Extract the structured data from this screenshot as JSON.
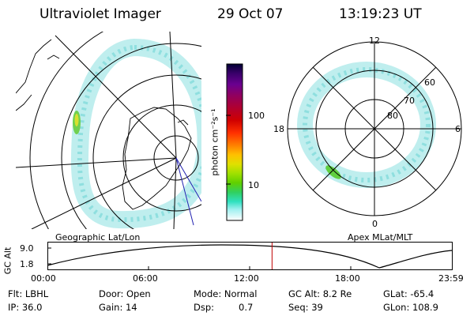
{
  "header": {
    "instrument": "Ultraviolet Imager",
    "date": "29 Oct 07",
    "time": "13:19:23 UT"
  },
  "left_panel": {
    "label": "Geographic Lat/Lon"
  },
  "right_panel": {
    "label": "Apex MLat/MLT",
    "mlt_labels": {
      "top": "12",
      "left": "18",
      "right": "6",
      "bottom": "0"
    },
    "lat_labels": [
      "60",
      "70",
      "80"
    ]
  },
  "colorbar": {
    "unit_label": "photon cm⁻²s⁻¹",
    "ticks": [
      "100",
      "10"
    ],
    "colors": [
      "#000033",
      "#3a006a",
      "#6a0090",
      "#900060",
      "#b00030",
      "#d00000",
      "#ff3000",
      "#ff8000",
      "#ffc000",
      "#e0e000",
      "#a0e000",
      "#60d000",
      "#30d060",
      "#30e0c0",
      "#50e8e0",
      "#a0f0f0",
      "#ffffff"
    ]
  },
  "timeline": {
    "ylabel": "GC Alt",
    "yticks": [
      "9.0",
      "1.8"
    ],
    "xticks": [
      "00:00",
      "06:00",
      "12:00",
      "18:00",
      "23:59"
    ],
    "current_time_hours": 13.32
  },
  "info": {
    "flt": "Flt: LBHL",
    "door": "Door: Open",
    "mode": "Mode: Normal",
    "gc_alt": "GC Alt: 8.2 Re",
    "glat": "GLat: -65.4",
    "ip": "IP: 36.0",
    "gain": "Gain: 14",
    "dsp_label": "Dsp:",
    "dsp_value": "0.7",
    "seq": "Seq: 39",
    "glon": "GLon: 108.9"
  }
}
